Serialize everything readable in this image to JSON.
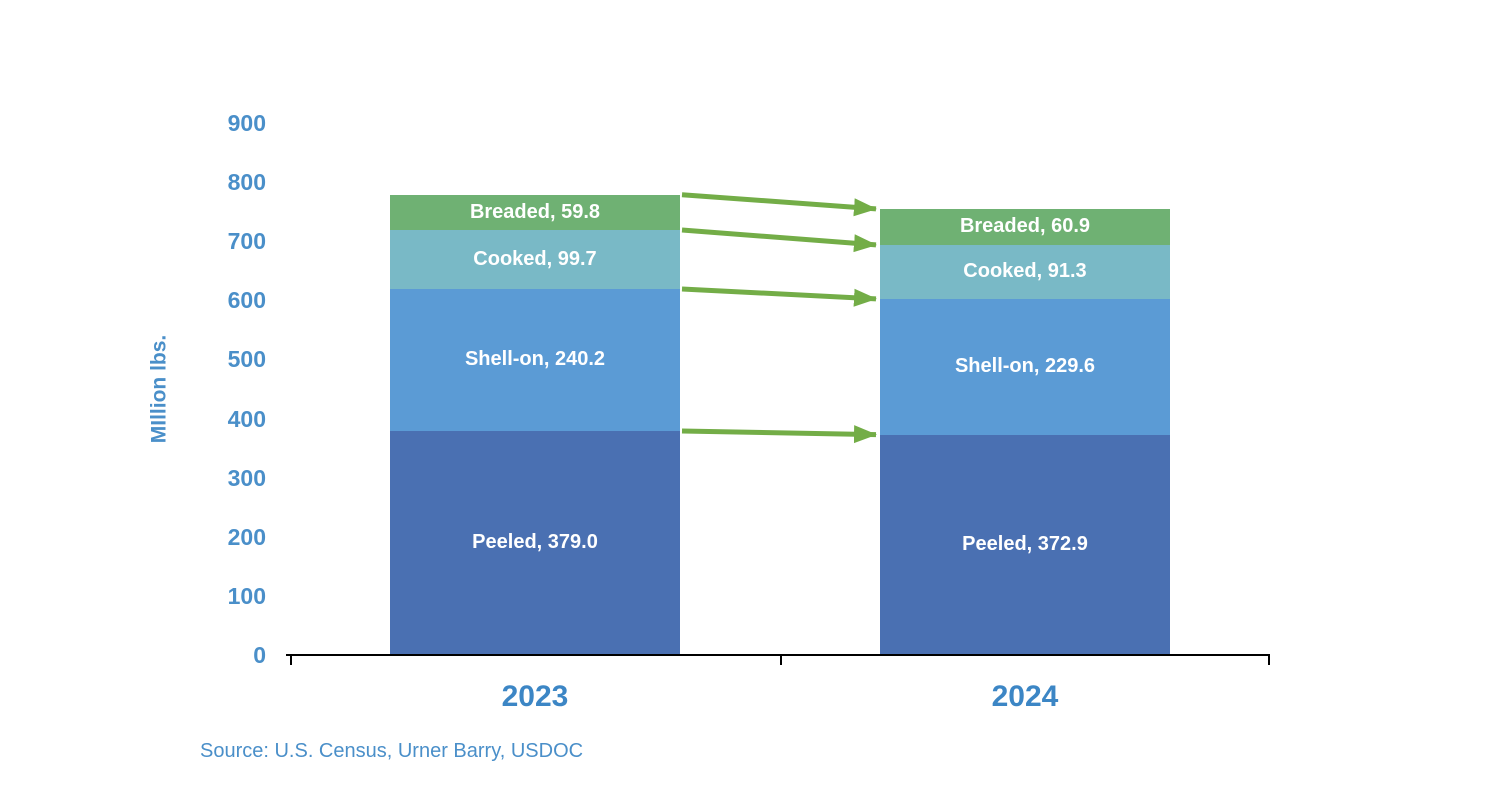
{
  "colors": {
    "axis_text": "#4a8fc9",
    "year_label": "#3c86c5",
    "source_text": "#4a8fc9",
    "axis_line": "#000000",
    "segment_label": "#ffffff",
    "arrow": "#73ad47"
  },
  "source": {
    "text": "Source: U.S. Census, Urner Barry, USDOC"
  },
  "chart_data": {
    "type": "bar",
    "stacked": true,
    "orientation": "vertical",
    "categories": [
      "2023",
      "2024"
    ],
    "series": [
      {
        "name": "Peeled",
        "values": [
          379.0,
          372.9
        ],
        "color": "#4a70b2"
      },
      {
        "name": "Shell-on",
        "values": [
          240.2,
          229.6
        ],
        "color": "#5b9bd5"
      },
      {
        "name": "Cooked",
        "values": [
          99.7,
          91.3
        ],
        "color": "#79b9c6"
      },
      {
        "name": "Breaded",
        "values": [
          59.8,
          60.9
        ],
        "color": "#6fb173"
      }
    ],
    "title": "",
    "xlabel": "",
    "ylabel": "MIllion lbs.",
    "ylim": [
      0,
      900
    ],
    "yticks": [
      0,
      100,
      200,
      300,
      400,
      500,
      600,
      700,
      800,
      900
    ],
    "grid": false,
    "legend_position": "none",
    "data_label_format": "{series}, {value}",
    "annotations": [
      "Green arrows connect each segment boundary from the 2023 bar to the 2024 bar"
    ]
  }
}
